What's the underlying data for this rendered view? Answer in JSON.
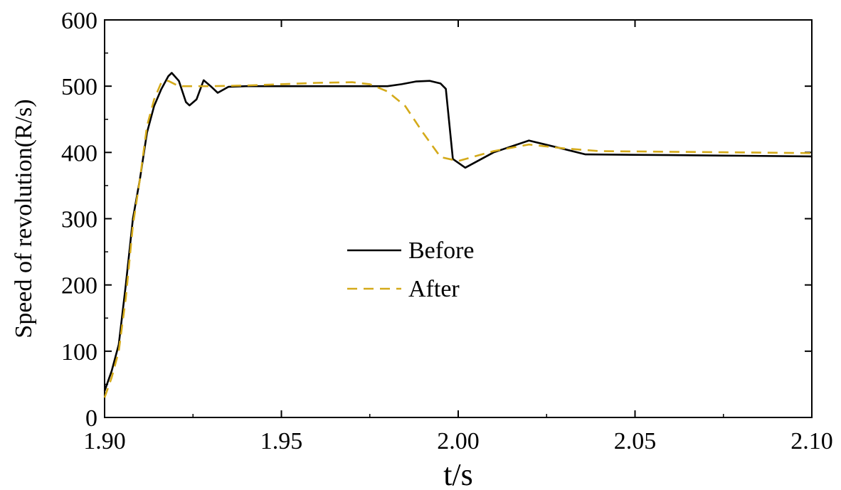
{
  "chart_data": {
    "type": "line",
    "title": "",
    "xlabel": "t/s",
    "ylabel": "Speed of revolution(R/s)",
    "xlim": [
      1.9,
      2.1
    ],
    "ylim": [
      0,
      600
    ],
    "x_ticks": [
      1.9,
      1.95,
      2.0,
      2.05,
      2.1
    ],
    "x_tick_labels": [
      "1.90",
      "1.95",
      "2.00",
      "2.05",
      "2.10"
    ],
    "y_ticks": [
      0,
      100,
      200,
      300,
      400,
      500,
      600
    ],
    "y_tick_labels": [
      "0",
      "100",
      "200",
      "300",
      "400",
      "500",
      "600"
    ],
    "grid": false,
    "legend_position": "center",
    "series": [
      {
        "name": "Before",
        "color": "#000000",
        "dash": "solid",
        "points": [
          [
            1.9,
            40
          ],
          [
            1.902,
            70
          ],
          [
            1.904,
            110
          ],
          [
            1.906,
            200
          ],
          [
            1.908,
            300
          ],
          [
            1.91,
            360
          ],
          [
            1.912,
            430
          ],
          [
            1.914,
            470
          ],
          [
            1.916,
            495
          ],
          [
            1.918,
            515
          ],
          [
            1.919,
            520
          ],
          [
            1.921,
            508
          ],
          [
            1.923,
            476
          ],
          [
            1.924,
            471
          ],
          [
            1.926,
            480
          ],
          [
            1.928,
            509
          ],
          [
            1.93,
            500
          ],
          [
            1.932,
            490
          ],
          [
            1.935,
            499
          ],
          [
            1.94,
            500
          ],
          [
            1.96,
            500
          ],
          [
            1.98,
            500
          ],
          [
            1.984,
            503
          ],
          [
            1.988,
            507
          ],
          [
            1.992,
            508
          ],
          [
            1.995,
            504
          ],
          [
            1.9965,
            496
          ],
          [
            1.9985,
            390
          ],
          [
            2.002,
            377
          ],
          [
            2.01,
            400
          ],
          [
            2.02,
            418
          ],
          [
            2.03,
            405
          ],
          [
            2.036,
            397
          ],
          [
            2.06,
            396
          ],
          [
            2.08,
            395
          ],
          [
            2.1,
            394
          ]
        ]
      },
      {
        "name": "After",
        "color": "#d4aa1a",
        "dash": "dashed",
        "points": [
          [
            1.9,
            30
          ],
          [
            1.902,
            60
          ],
          [
            1.904,
            100
          ],
          [
            1.906,
            180
          ],
          [
            1.908,
            290
          ],
          [
            1.91,
            360
          ],
          [
            1.912,
            440
          ],
          [
            1.914,
            480
          ],
          [
            1.916,
            505
          ],
          [
            1.918,
            508
          ],
          [
            1.921,
            500
          ],
          [
            1.925,
            500
          ],
          [
            1.93,
            500
          ],
          [
            1.94,
            501
          ],
          [
            1.95,
            503
          ],
          [
            1.96,
            505
          ],
          [
            1.97,
            506
          ],
          [
            1.975,
            503
          ],
          [
            1.98,
            492
          ],
          [
            1.985,
            470
          ],
          [
            1.99,
            430
          ],
          [
            1.995,
            393
          ],
          [
            2.0,
            387
          ],
          [
            2.01,
            402
          ],
          [
            2.02,
            412
          ],
          [
            2.03,
            406
          ],
          [
            2.04,
            402
          ],
          [
            2.06,
            401
          ],
          [
            2.08,
            400
          ],
          [
            2.1,
            399
          ]
        ]
      }
    ]
  }
}
